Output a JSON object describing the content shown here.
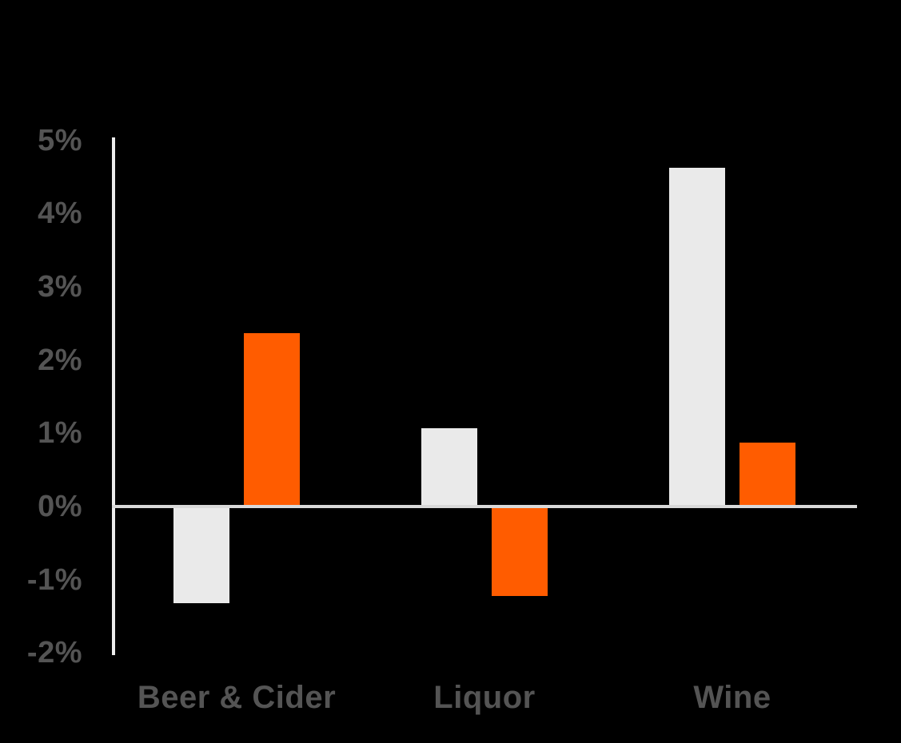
{
  "chart_data": {
    "type": "bar",
    "categories": [
      "Beer & Cider",
      "Liquor",
      "Wine"
    ],
    "series": [
      {
        "name": "light-gray",
        "color": "#EAEAEA",
        "values": [
          -1.3,
          1.05,
          4.6
        ]
      },
      {
        "name": "orange",
        "color": "#FF5C00",
        "values": [
          2.35,
          -1.2,
          0.85
        ]
      }
    ],
    "ylim": [
      -2,
      5
    ],
    "ytick_step": 1,
    "yticks": [
      5,
      4,
      3,
      2,
      1,
      0,
      -1,
      -2
    ],
    "ytick_labels": [
      "5%",
      "4%",
      "3%",
      "2%",
      "1%",
      "0%",
      "-1%",
      "-2%"
    ],
    "grid": false,
    "legend": "none",
    "background_color": "#000000",
    "axis_line_color": "#EDEDED",
    "zero_line_color": "#D9D9D9",
    "label_color": "#545454"
  }
}
